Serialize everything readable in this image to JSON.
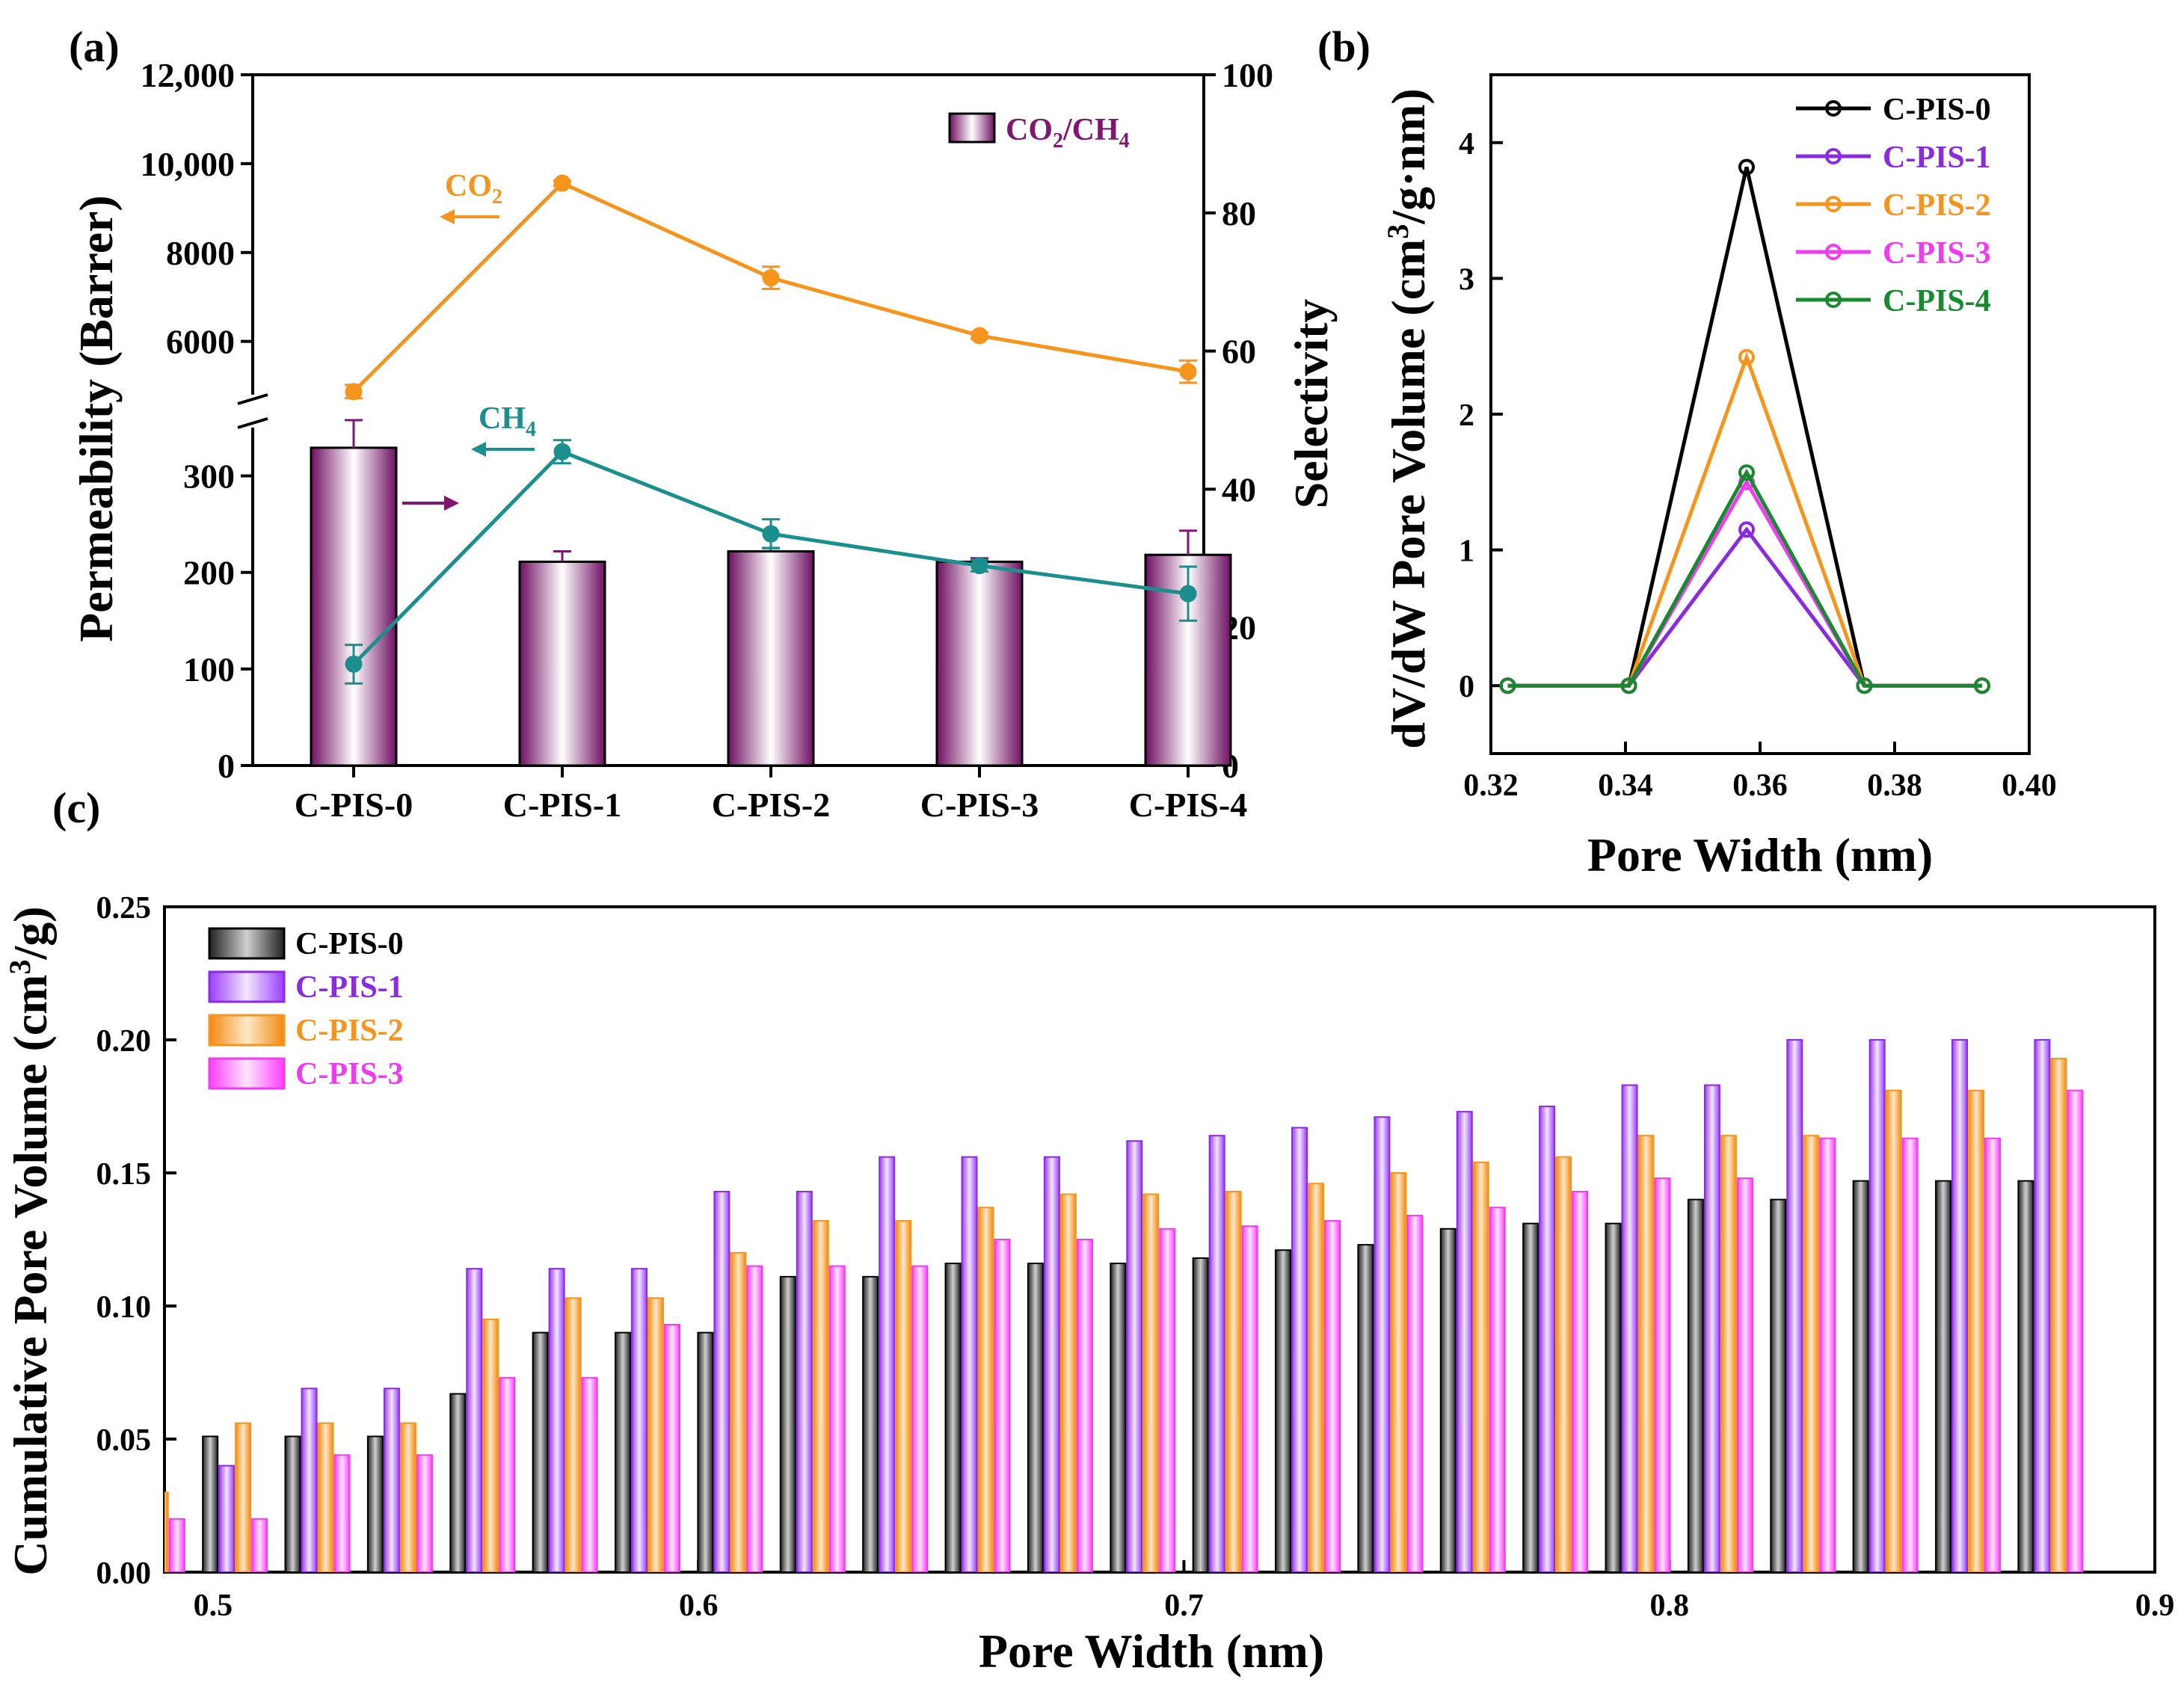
{
  "colors": {
    "black": "#000000",
    "purple_bar": "#7f1670",
    "orange": "#f7941d",
    "teal": "#1b8e8e",
    "violet": "#8a2be2",
    "magenta": "#f03cf0",
    "green": "#178a2f",
    "gray": "#4a4a4a",
    "light_violet": "#b46bff",
    "pink": "#ff66ff"
  },
  "chart_data": [
    {
      "panel": "(a)",
      "type": "bar+line",
      "categories": [
        "C-PIS-0",
        "C-PIS-1",
        "C-PIS-2",
        "C-PIS-3",
        "C-PIS-4"
      ],
      "y_left_label": "Permeability (Barrer)",
      "y_left_ticks_upper": [
        "6000",
        "8000",
        "10,000",
        "12,000"
      ],
      "y_left_ticks_lower": [
        "0",
        "100",
        "200",
        "300"
      ],
      "y_left_upper_range": [
        4800,
        12000
      ],
      "y_left_lower_range": [
        0,
        350
      ],
      "y_right_label": "Selectivity",
      "y_right_range": [
        0,
        100
      ],
      "y_right_ticks": [
        "0",
        "20",
        "40",
        "60",
        "80",
        "100"
      ],
      "legend": "CO2/CH4",
      "legend_parts": {
        "a": "CO",
        "b": "2",
        "c": "/CH",
        "d": "4"
      },
      "bars": {
        "name": "CO2/CH4 selectivity",
        "values": [
          46,
          29.5,
          31,
          29.5,
          30.5
        ],
        "errors": [
          4,
          1.5,
          0.5,
          0.5,
          3.5
        ]
      },
      "co2_label": {
        "text": "CO",
        "sub": "2"
      },
      "ch4_label": {
        "text": "CH",
        "sub": "4"
      },
      "series": [
        {
          "name": "CO2",
          "values": [
            4870,
            9560,
            7430,
            6130,
            5320
          ],
          "errors": [
            150,
            60,
            250,
            70,
            250
          ]
        },
        {
          "name": "CH4",
          "values": [
            105,
            325,
            240,
            207,
            178
          ],
          "errors": [
            20,
            12,
            15,
            6,
            28
          ]
        }
      ]
    },
    {
      "panel": "(b)",
      "type": "line",
      "xlabel": "Pore Width (nm)",
      "ylabel_main": "dV/dW Pore Volume (cm",
      "ylabel_sup": "3",
      "ylabel_end": "/g·nm)",
      "xlim": [
        0.32,
        0.4
      ],
      "ylim": [
        -0.5,
        4.5
      ],
      "x_ticks": [
        "0.32",
        "0.34",
        "0.36",
        "0.38",
        "0.40"
      ],
      "y_ticks": [
        "0",
        "1",
        "2",
        "3",
        "4"
      ],
      "x": [
        0.3225,
        0.3405,
        0.358,
        0.3755,
        0.393
      ],
      "series": [
        {
          "name": "C-PIS-0",
          "values": [
            0,
            0,
            3.82,
            0,
            0
          ]
        },
        {
          "name": "C-PIS-1",
          "values": [
            0,
            0,
            1.15,
            0,
            0
          ]
        },
        {
          "name": "C-PIS-2",
          "values": [
            0,
            0,
            2.42,
            0,
            0
          ]
        },
        {
          "name": "C-PIS-3",
          "values": [
            0,
            0,
            1.5,
            0,
            0
          ]
        },
        {
          "name": "C-PIS-4",
          "values": [
            0,
            0,
            1.57,
            0,
            0
          ]
        }
      ]
    },
    {
      "panel": "(c)",
      "type": "bar",
      "xlabel": "Pore Width (nm)",
      "ylabel_main": "Cumulative Pore Volume (cm",
      "ylabel_sup": "3",
      "ylabel_end": "/g)",
      "xlim": [
        0.49,
        0.9
      ],
      "ylim": [
        0,
        0.25
      ],
      "x_ticks": [
        "0.5",
        "0.6",
        "0.7",
        "0.8",
        "0.9"
      ],
      "y_ticks": [
        "0.00",
        "0.05",
        "0.10",
        "0.15",
        "0.20",
        "0.25"
      ],
      "x": [
        0.4875,
        0.5045,
        0.5215,
        0.5385,
        0.5555,
        0.5725,
        0.5895,
        0.6065,
        0.6235,
        0.6405,
        0.6575,
        0.6745,
        0.6915,
        0.7085,
        0.7255,
        0.7425,
        0.7595,
        0.7765,
        0.7935,
        0.8105,
        0.8275,
        0.8445,
        0.8615,
        0.8785
      ],
      "series": [
        {
          "name": "C-PIS-0",
          "values": [
            0,
            0.051,
            0.051,
            0.051,
            0.067,
            0.09,
            0.09,
            0.09,
            0.111,
            0.111,
            0.116,
            0.116,
            0.116,
            0.118,
            0.121,
            0.123,
            0.129,
            0.131,
            0.131,
            0.14,
            0.14,
            0.147,
            0.147,
            0.147
          ]
        },
        {
          "name": "C-PIS-1",
          "values": [
            0,
            0.04,
            0.069,
            0.069,
            0.114,
            0.114,
            0.114,
            0.143,
            0.143,
            0.156,
            0.156,
            0.156,
            0.162,
            0.164,
            0.167,
            0.171,
            0.173,
            0.175,
            0.183,
            0.183,
            0.2,
            0.2,
            0.2,
            0.2
          ]
        },
        {
          "name": "C-PIS-2",
          "values": [
            0.03,
            0.056,
            0.056,
            0.056,
            0.095,
            0.103,
            0.103,
            0.12,
            0.132,
            0.132,
            0.137,
            0.142,
            0.142,
            0.143,
            0.146,
            0.15,
            0.154,
            0.156,
            0.164,
            0.164,
            0.164,
            0.181,
            0.181,
            0.193
          ]
        },
        {
          "name": "C-PIS-3",
          "values": [
            0.02,
            0.02,
            0.044,
            0.044,
            0.073,
            0.073,
            0.093,
            0.115,
            0.115,
            0.115,
            0.125,
            0.125,
            0.129,
            0.13,
            0.132,
            0.134,
            0.137,
            0.143,
            0.148,
            0.148,
            0.163,
            0.163,
            0.163,
            0.181
          ]
        }
      ]
    }
  ]
}
